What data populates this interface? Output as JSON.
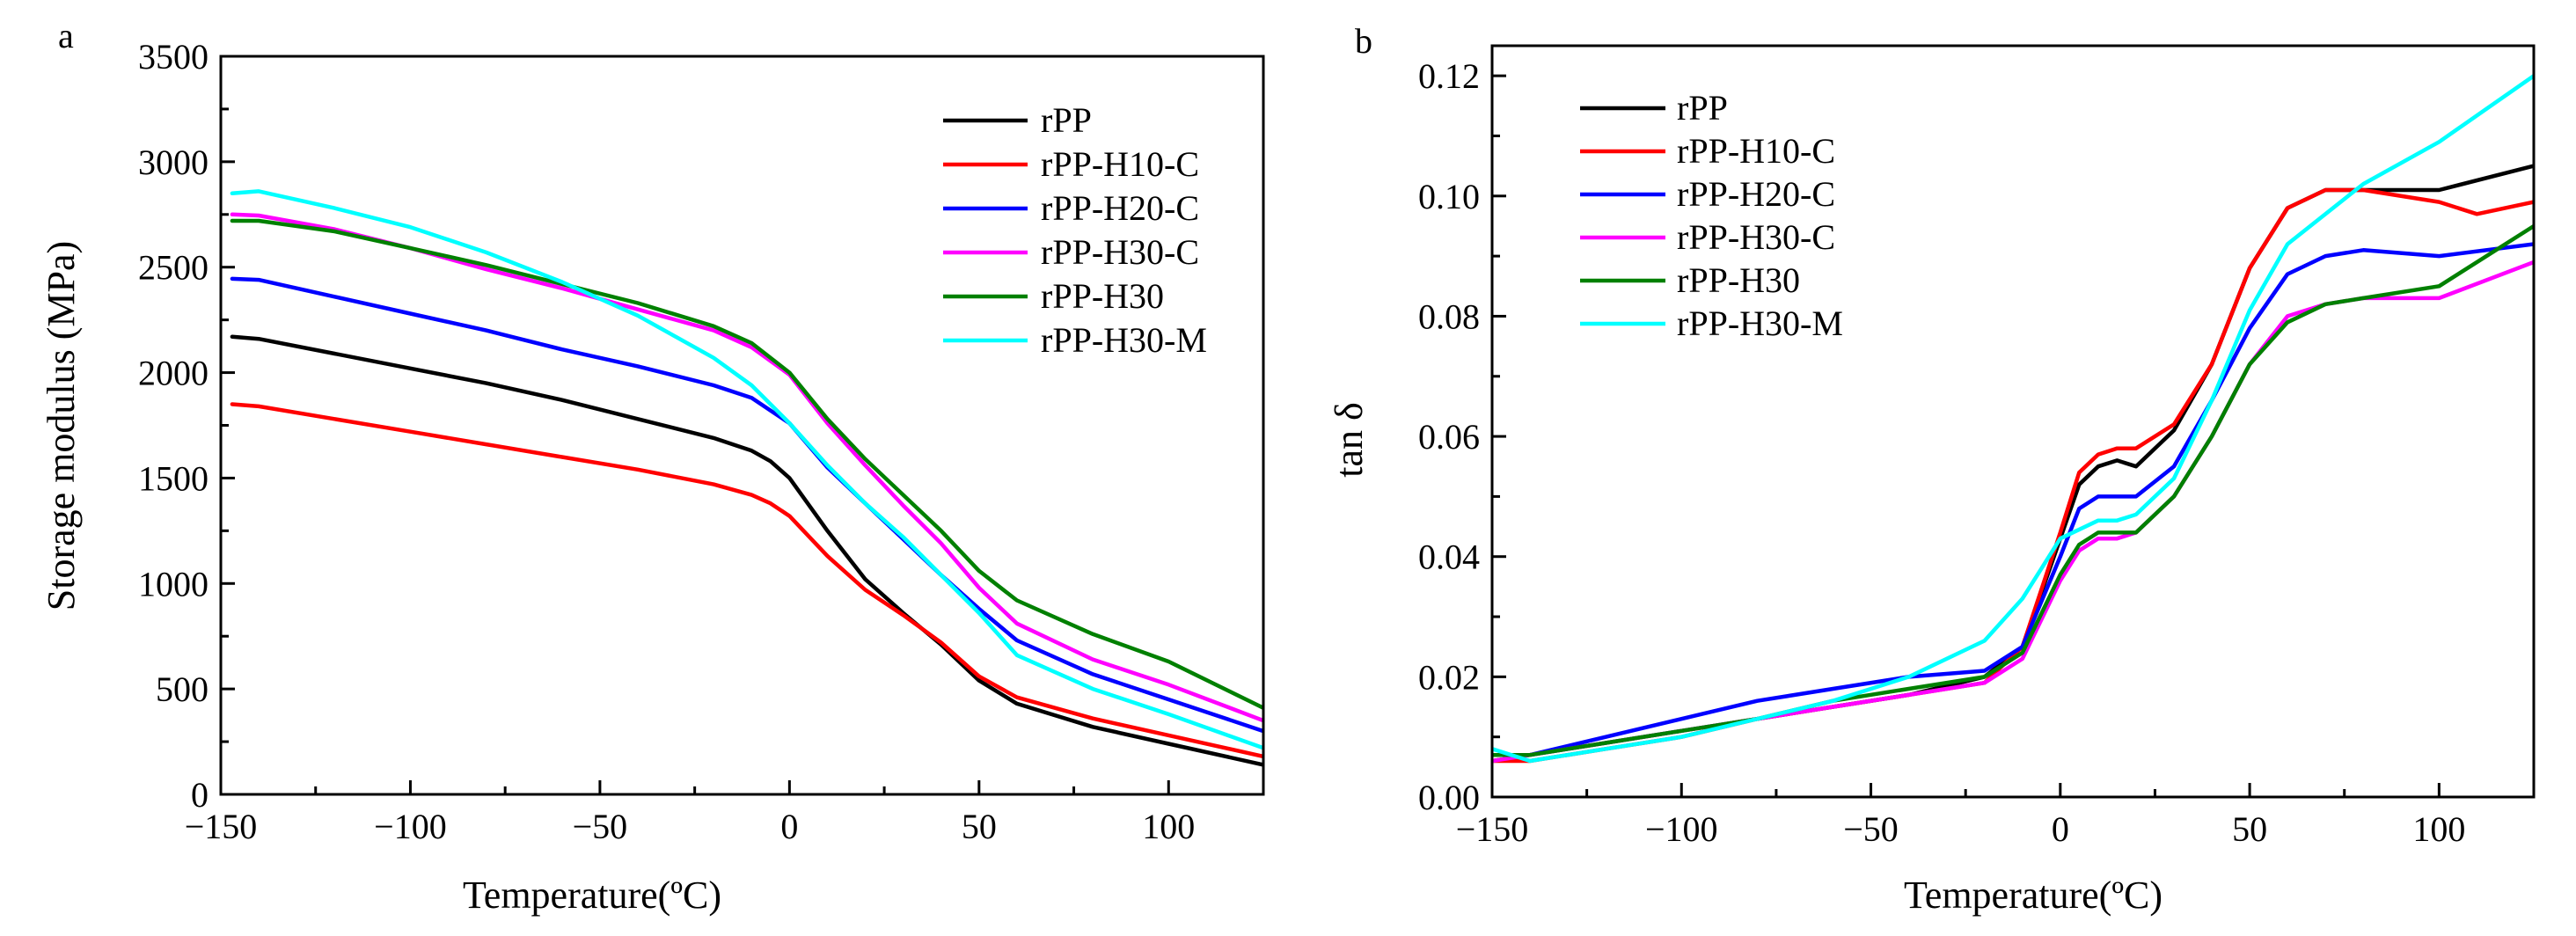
{
  "chart_data": [
    {
      "type": "line",
      "panel_label": "a",
      "xlabel": "Temperature(ºC)",
      "ylabel": "Storage modulus (MPa)",
      "xlim": [
        -150,
        125
      ],
      "ylim": [
        0,
        3500
      ],
      "x_major_ticks": [
        -150,
        -100,
        -50,
        0,
        50,
        100
      ],
      "x_tick_labels": [
        "−150",
        "−100",
        "−50",
        "0",
        "50",
        "100"
      ],
      "y_major_ticks": [
        0,
        500,
        1000,
        1500,
        2000,
        2500,
        3000,
        3500
      ],
      "y_tick_labels": [
        "0",
        "500",
        "1000",
        "1500",
        "2000",
        "2500",
        "3000",
        "3500"
      ],
      "legend_position": "top-right",
      "grid": false,
      "series": [
        {
          "name": "rPP",
          "color": "#000000",
          "x": [
            -147,
            -140,
            -120,
            -100,
            -80,
            -60,
            -40,
            -20,
            -10,
            -5,
            0,
            10,
            20,
            30,
            40,
            50,
            60,
            80,
            100,
            125
          ],
          "y": [
            2170,
            2160,
            2090,
            2020,
            1950,
            1870,
            1780,
            1690,
            1630,
            1580,
            1500,
            1250,
            1020,
            860,
            710,
            540,
            430,
            320,
            240,
            140
          ]
        },
        {
          "name": "rPP-H10-C",
          "color": "#ff0000",
          "x": [
            -147,
            -140,
            -120,
            -100,
            -80,
            -60,
            -40,
            -20,
            -10,
            -5,
            0,
            10,
            20,
            30,
            40,
            50,
            60,
            80,
            100,
            125
          ],
          "y": [
            1850,
            1840,
            1780,
            1720,
            1660,
            1600,
            1540,
            1470,
            1420,
            1380,
            1320,
            1130,
            970,
            850,
            720,
            560,
            460,
            360,
            280,
            180
          ]
        },
        {
          "name": "rPP-H20-C",
          "color": "#0000ff",
          "x": [
            -147,
            -140,
            -120,
            -100,
            -80,
            -60,
            -40,
            -20,
            -10,
            0,
            10,
            20,
            30,
            40,
            50,
            60,
            80,
            100,
            125
          ],
          "y": [
            2445,
            2440,
            2360,
            2280,
            2200,
            2110,
            2030,
            1940,
            1880,
            1760,
            1550,
            1380,
            1210,
            1040,
            880,
            730,
            570,
            450,
            300
          ]
        },
        {
          "name": "rPP-H30-C",
          "color": "#ff00ff",
          "x": [
            -147,
            -140,
            -120,
            -100,
            -80,
            -60,
            -40,
            -20,
            -10,
            0,
            10,
            20,
            30,
            40,
            50,
            60,
            80,
            100,
            125
          ],
          "y": [
            2750,
            2745,
            2680,
            2590,
            2490,
            2400,
            2300,
            2200,
            2120,
            1990,
            1760,
            1560,
            1370,
            1190,
            980,
            810,
            640,
            520,
            350
          ]
        },
        {
          "name": "rPP-H30",
          "color": "#008000",
          "x": [
            -147,
            -140,
            -120,
            -100,
            -80,
            -60,
            -40,
            -20,
            -10,
            0,
            10,
            20,
            30,
            40,
            50,
            60,
            80,
            100,
            125
          ],
          "y": [
            2720,
            2720,
            2670,
            2590,
            2510,
            2420,
            2330,
            2220,
            2140,
            2000,
            1780,
            1590,
            1420,
            1250,
            1060,
            920,
            760,
            630,
            410
          ]
        },
        {
          "name": "rPP-H30-M",
          "color": "#00ffff",
          "x": [
            -147,
            -140,
            -120,
            -100,
            -80,
            -60,
            -40,
            -20,
            -10,
            0,
            10,
            20,
            30,
            40,
            50,
            60,
            80,
            100,
            125
          ],
          "y": [
            2850,
            2860,
            2780,
            2690,
            2570,
            2430,
            2270,
            2070,
            1940,
            1760,
            1560,
            1380,
            1220,
            1040,
            860,
            660,
            500,
            380,
            220
          ]
        }
      ]
    },
    {
      "type": "line",
      "panel_label": "b",
      "xlabel": "Temperature(ºC)",
      "ylabel": "tan δ",
      "xlim": [
        -150,
        125
      ],
      "ylim": [
        0.0,
        0.125
      ],
      "x_major_ticks": [
        -150,
        -100,
        -50,
        0,
        50,
        100
      ],
      "x_tick_labels": [
        "−150",
        "−100",
        "−50",
        "0",
        "50",
        "100"
      ],
      "y_major_ticks": [
        0.0,
        0.02,
        0.04,
        0.06,
        0.08,
        0.1,
        0.12
      ],
      "y_tick_labels": [
        "0.00",
        "0.02",
        "0.04",
        "0.06",
        "0.08",
        "0.10",
        "0.12"
      ],
      "legend_position": "top-left",
      "grid": false,
      "series": [
        {
          "name": "rPP",
          "color": "#000000",
          "x": [
            -150,
            -140,
            -120,
            -100,
            -80,
            -60,
            -40,
            -20,
            -10,
            0,
            5,
            10,
            15,
            20,
            30,
            40,
            50,
            60,
            70,
            80,
            100,
            125
          ],
          "y": [
            0.006,
            0.007,
            0.009,
            0.011,
            0.013,
            0.015,
            0.017,
            0.02,
            0.025,
            0.043,
            0.052,
            0.055,
            0.056,
            0.055,
            0.061,
            0.072,
            0.088,
            0.098,
            0.101,
            0.101,
            0.101,
            0.105
          ]
        },
        {
          "name": "rPP-H10-C",
          "color": "#ff0000",
          "x": [
            -150,
            -140,
            -120,
            -100,
            -80,
            -60,
            -40,
            -20,
            -10,
            0,
            5,
            10,
            15,
            20,
            30,
            40,
            50,
            60,
            70,
            80,
            100,
            110,
            125
          ],
          "y": [
            0.006,
            0.006,
            0.008,
            0.01,
            0.013,
            0.015,
            0.017,
            0.019,
            0.025,
            0.044,
            0.054,
            0.057,
            0.058,
            0.058,
            0.062,
            0.072,
            0.088,
            0.098,
            0.101,
            0.101,
            0.099,
            0.097,
            0.099
          ]
        },
        {
          "name": "rPP-H20-C",
          "color": "#0000ff",
          "x": [
            -150,
            -140,
            -120,
            -100,
            -80,
            -60,
            -40,
            -20,
            -10,
            0,
            5,
            10,
            15,
            20,
            30,
            40,
            50,
            60,
            70,
            80,
            100,
            125
          ],
          "y": [
            0.007,
            0.007,
            0.01,
            0.013,
            0.016,
            0.018,
            0.02,
            0.021,
            0.025,
            0.04,
            0.048,
            0.05,
            0.05,
            0.05,
            0.055,
            0.066,
            0.078,
            0.087,
            0.09,
            0.091,
            0.09,
            0.092
          ]
        },
        {
          "name": "rPP-H30-C",
          "color": "#ff00ff",
          "x": [
            -150,
            -140,
            -120,
            -100,
            -80,
            -60,
            -40,
            -20,
            -10,
            0,
            5,
            10,
            15,
            20,
            30,
            40,
            50,
            60,
            70,
            80,
            100,
            125
          ],
          "y": [
            0.006,
            0.007,
            0.009,
            0.011,
            0.013,
            0.015,
            0.017,
            0.019,
            0.023,
            0.036,
            0.041,
            0.043,
            0.043,
            0.044,
            0.05,
            0.06,
            0.072,
            0.08,
            0.082,
            0.083,
            0.083,
            0.089
          ]
        },
        {
          "name": "rPP-H30",
          "color": "#008000",
          "x": [
            -150,
            -140,
            -120,
            -100,
            -80,
            -60,
            -40,
            -20,
            -10,
            0,
            5,
            10,
            15,
            20,
            30,
            40,
            50,
            60,
            70,
            80,
            100,
            125
          ],
          "y": [
            0.007,
            0.007,
            0.009,
            0.011,
            0.013,
            0.016,
            0.018,
            0.02,
            0.024,
            0.037,
            0.042,
            0.044,
            0.044,
            0.044,
            0.05,
            0.06,
            0.072,
            0.079,
            0.082,
            0.083,
            0.085,
            0.095
          ]
        },
        {
          "name": "rPP-H30-M",
          "color": "#00ffff",
          "x": [
            -150,
            -140,
            -120,
            -100,
            -80,
            -60,
            -40,
            -20,
            -10,
            -5,
            0,
            10,
            15,
            20,
            30,
            40,
            50,
            60,
            80,
            100,
            125
          ],
          "y": [
            0.008,
            0.006,
            0.008,
            0.01,
            0.013,
            0.016,
            0.02,
            0.026,
            0.033,
            0.038,
            0.043,
            0.046,
            0.046,
            0.047,
            0.053,
            0.066,
            0.081,
            0.092,
            0.102,
            0.109,
            0.12
          ]
        }
      ]
    }
  ]
}
